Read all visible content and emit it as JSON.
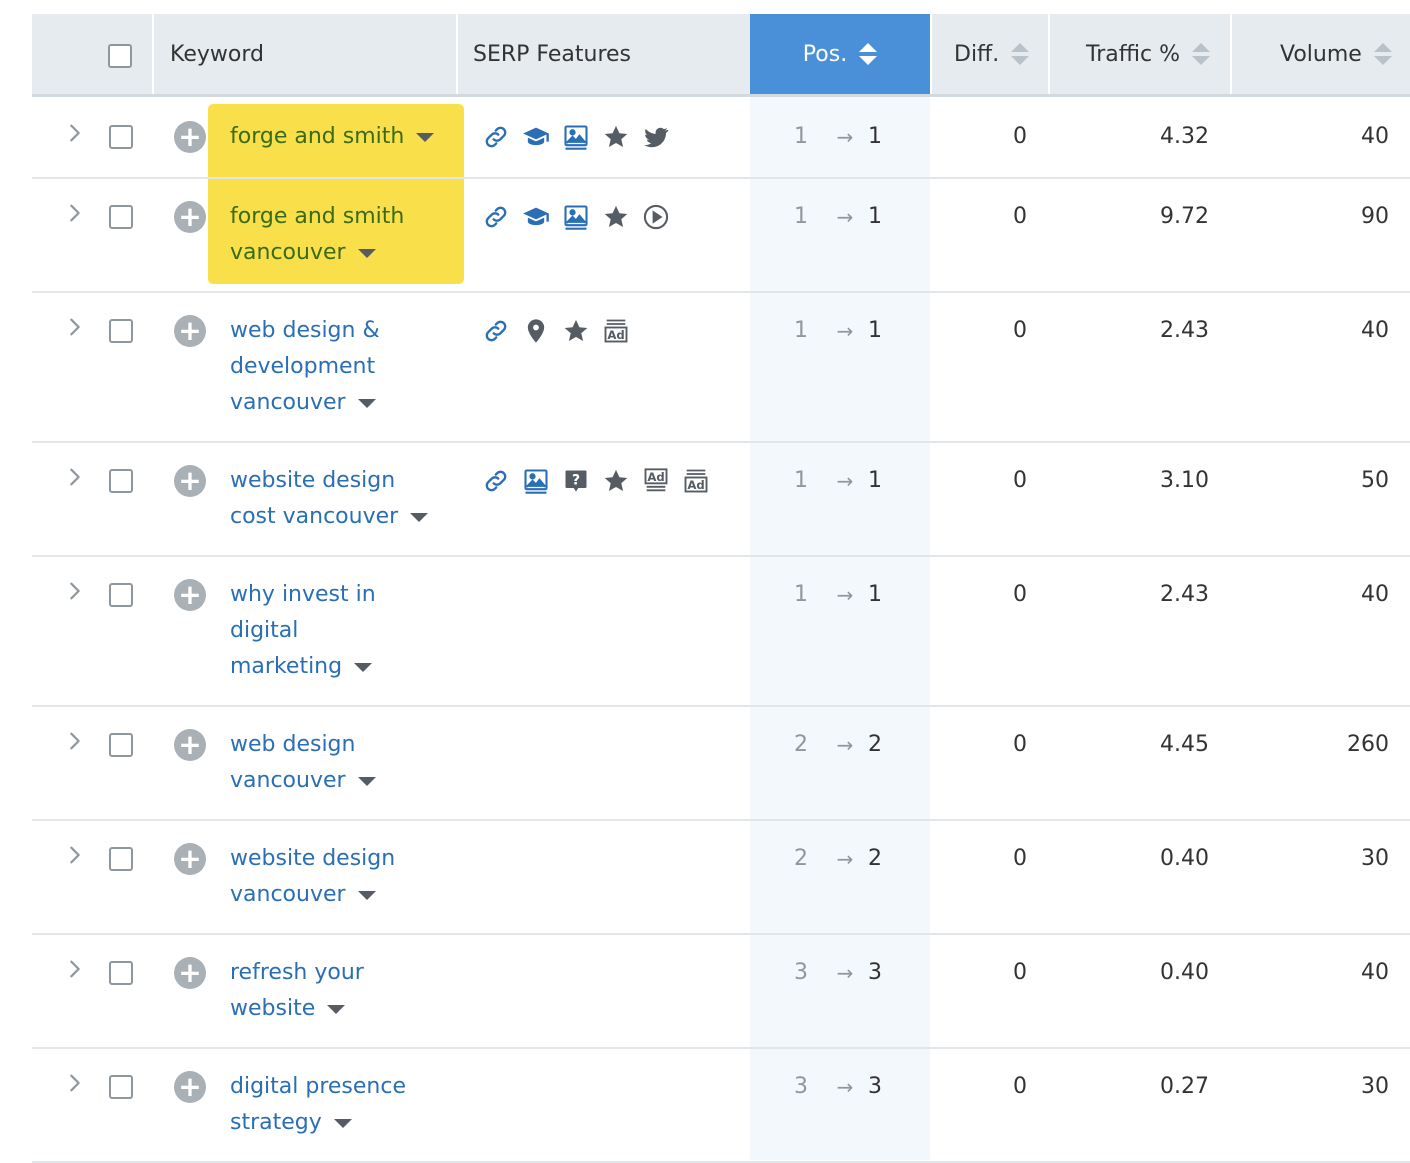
{
  "header": {
    "keyword": "Keyword",
    "serp": "SERP Features",
    "pos": "Pos.",
    "diff": "Diff.",
    "traffic": "Traffic %",
    "volume": "Volume"
  },
  "colors": {
    "header_bg": "#e6ebef",
    "pos_header_bg": "#4a90d9",
    "highlight": "#f9df4a",
    "keyword_link": "#2a6fb5",
    "icon": "#2a6fb5"
  },
  "rows": [
    {
      "lines": [
        "forge and smith"
      ],
      "highlight": true,
      "serp": [
        "link-icon",
        "graduation-cap-icon",
        "image-icon",
        "star-icon",
        "twitter-icon"
      ],
      "pos_old": "1",
      "pos_new": "1",
      "diff": "0",
      "traffic": "4.32",
      "volume": "40"
    },
    {
      "lines": [
        "forge and smith",
        "vancouver"
      ],
      "highlight": true,
      "serp": [
        "link-icon",
        "graduation-cap-icon",
        "image-icon",
        "star-icon",
        "video-icon"
      ],
      "pos_old": "1",
      "pos_new": "1",
      "diff": "0",
      "traffic": "9.72",
      "volume": "90"
    },
    {
      "lines": [
        "web design &",
        "development",
        "vancouver"
      ],
      "highlight": false,
      "serp": [
        "link-icon",
        "map-pin-icon",
        "star-icon",
        "ad-icon"
      ],
      "pos_old": "1",
      "pos_new": "1",
      "diff": "0",
      "traffic": "2.43",
      "volume": "40"
    },
    {
      "lines": [
        "website design",
        "cost vancouver"
      ],
      "highlight": false,
      "serp": [
        "link-icon",
        "image-icon",
        "question-icon",
        "star-icon",
        "ad-top-icon",
        "ad-icon"
      ],
      "pos_old": "1",
      "pos_new": "1",
      "diff": "0",
      "traffic": "3.10",
      "volume": "50"
    },
    {
      "lines": [
        "why invest in",
        "digital",
        "marketing"
      ],
      "highlight": false,
      "serp": [],
      "pos_old": "1",
      "pos_new": "1",
      "diff": "0",
      "traffic": "2.43",
      "volume": "40"
    },
    {
      "lines": [
        "web design",
        "vancouver"
      ],
      "highlight": false,
      "serp": [],
      "pos_old": "2",
      "pos_new": "2",
      "diff": "0",
      "traffic": "4.45",
      "volume": "260"
    },
    {
      "lines": [
        "website design",
        "vancouver"
      ],
      "highlight": false,
      "serp": [],
      "pos_old": "2",
      "pos_new": "2",
      "diff": "0",
      "traffic": "0.40",
      "volume": "30"
    },
    {
      "lines": [
        "refresh your",
        "website"
      ],
      "highlight": false,
      "serp": [],
      "pos_old": "3",
      "pos_new": "3",
      "diff": "0",
      "traffic": "0.40",
      "volume": "40"
    },
    {
      "lines": [
        "digital presence",
        "strategy"
      ],
      "highlight": false,
      "serp": [],
      "pos_old": "3",
      "pos_new": "3",
      "diff": "0",
      "traffic": "0.27",
      "volume": "30"
    }
  ]
}
